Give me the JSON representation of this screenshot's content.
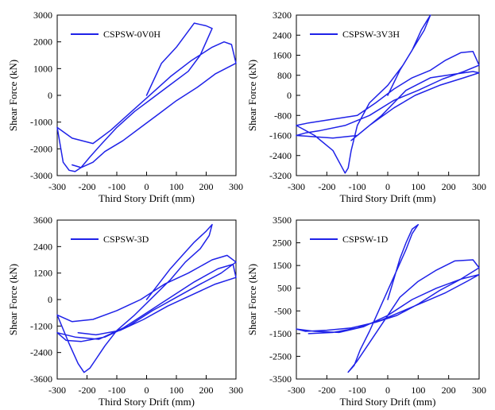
{
  "chart_data": [
    {
      "type": "line",
      "title": "",
      "xlabel": "Third Story Drift (mm)",
      "ylabel": "Shear Force (kN)",
      "xlim": [
        -300,
        300
      ],
      "ylim": [
        -3000,
        3000
      ],
      "xticks": [
        -300,
        -200,
        -100,
        0,
        100,
        200,
        300
      ],
      "yticks": [
        3000,
        2000,
        1000,
        0,
        -1000,
        -2000,
        -3000
      ],
      "xtick_labels": [
        "-300",
        "-200",
        "-100",
        "0",
        "100",
        "200",
        "300"
      ],
      "ytick_labels": [
        "3000",
        "2000",
        "1000",
        "0",
        "-1000",
        "-2000",
        "-3000"
      ],
      "legend": "top-left",
      "grid": false,
      "color": "#1f22e8",
      "series": [
        {
          "name": "CSPSW-0V0H",
          "x": [
            0,
            50,
            100,
            140,
            160,
            180,
            200,
            220,
            180,
            140,
            80,
            20,
            -40,
            -100,
            -150,
            -190,
            -220,
            -240,
            -260,
            -280,
            -300,
            -250,
            -180,
            -120,
            -60,
            0,
            80,
            150,
            220,
            260,
            285,
            300,
            230,
            170,
            100,
            40,
            -20,
            -80,
            -140,
            -180,
            -220,
            -250
          ],
          "y": [
            0,
            1200,
            1800,
            2400,
            2700,
            2650,
            2600,
            2500,
            1500,
            900,
            400,
            -100,
            -600,
            -1200,
            -1800,
            -2300,
            -2700,
            -2850,
            -2800,
            -2500,
            -1200,
            -1600,
            -1800,
            -1300,
            -700,
            -100,
            700,
            1300,
            1800,
            2000,
            1900,
            1200,
            800,
            300,
            -200,
            -700,
            -1200,
            -1700,
            -2100,
            -2500,
            -2700,
            -2600
          ]
        }
      ]
    },
    {
      "type": "line",
      "title": "",
      "xlabel": "Third Story Drift (mm)",
      "ylabel": "Shear Force (kN)",
      "xlim": [
        -300,
        300
      ],
      "ylim": [
        -3200,
        3200
      ],
      "xticks": [
        -300,
        -200,
        -100,
        0,
        100,
        200,
        300
      ],
      "yticks": [
        3200,
        2400,
        1600,
        800,
        0,
        -800,
        -1600,
        -2400,
        -3200
      ],
      "xtick_labels": [
        "-300",
        "-200",
        "-100",
        "0",
        "100",
        "200",
        "300"
      ],
      "ytick_labels": [
        "3200",
        "2400",
        "1600",
        "800",
        "0",
        "-800",
        "-1600",
        "-2400",
        "-3200"
      ],
      "legend": "top-left",
      "grid": false,
      "color": "#1f22e8",
      "series": [
        {
          "name": "CSPSW-3V3H",
          "x": [
            0,
            40,
            80,
            110,
            130,
            140,
            120,
            90,
            50,
            0,
            -60,
            -100,
            -120,
            -130,
            -140,
            -180,
            -240,
            -300,
            -260,
            -180,
            -100,
            -40,
            20,
            80,
            140,
            190,
            240,
            280,
            300,
            250,
            180,
            100,
            20,
            -60,
            -140,
            -220,
            -270,
            -300,
            -240,
            -180,
            -100,
            -20,
            60,
            140,
            220,
            280,
            300,
            250,
            170,
            90,
            20,
            -60,
            -120
          ],
          "y": [
            0,
            1000,
            1800,
            2600,
            3000,
            3200,
            2600,
            2000,
            1200,
            400,
            -300,
            -1200,
            -2200,
            -2900,
            -3100,
            -2200,
            -1600,
            -1200,
            -1100,
            -950,
            -800,
            -300,
            250,
            700,
            1000,
            1400,
            1700,
            1750,
            1200,
            950,
            650,
            200,
            -200,
            -800,
            -1200,
            -1400,
            -1500,
            -1600,
            -1650,
            -1700,
            -1600,
            -800,
            200,
            700,
            850,
            950,
            900,
            700,
            400,
            0,
            -500,
            -1200,
            -1800
          ]
        }
      ]
    },
    {
      "type": "line",
      "title": "",
      "xlabel": "Third Story Drift (mm)",
      "ylabel": "Shear Force (kN)",
      "xlim": [
        -300,
        300
      ],
      "ylim": [
        -3600,
        3600
      ],
      "xticks": [
        -300,
        -200,
        -100,
        0,
        100,
        200,
        300
      ],
      "yticks": [
        3600,
        2400,
        1200,
        0,
        -1200,
        -2400,
        -3600
      ],
      "xtick_labels": [
        "-300",
        "-200",
        "-100",
        "0",
        "100",
        "200",
        "300"
      ],
      "ytick_labels": [
        "3600",
        "2400",
        "1200",
        "0",
        "-1200",
        "-2400",
        "-3600"
      ],
      "legend": "top-left",
      "grid": false,
      "color": "#1f22e8",
      "series": [
        {
          "name": "CSPSW-3D",
          "x": [
            0,
            40,
            80,
            120,
            160,
            200,
            220,
            210,
            180,
            130,
            80,
            20,
            -40,
            -100,
            -140,
            -170,
            -190,
            -210,
            -230,
            -260,
            -300,
            -250,
            -180,
            -100,
            -20,
            60,
            140,
            220,
            270,
            300,
            250,
            180,
            100,
            20,
            -60,
            -140,
            -220,
            -270,
            -300,
            -240,
            -160,
            -80,
            0,
            80,
            160,
            240,
            290,
            300,
            230,
            150,
            70,
            -10,
            -90,
            -170,
            -230
          ],
          "y": [
            0,
            700,
            1400,
            2000,
            2600,
            3100,
            3400,
            2900,
            2300,
            1700,
            900,
            100,
            -700,
            -1400,
            -2100,
            -2700,
            -3100,
            -3300,
            -2900,
            -2000,
            -700,
            -1000,
            -900,
            -500,
            0,
            700,
            1200,
            1800,
            2000,
            1700,
            1200,
            700,
            100,
            -500,
            -1200,
            -1700,
            -1900,
            -1850,
            -1500,
            -1700,
            -1800,
            -1300,
            -600,
            100,
            800,
            1400,
            1600,
            1000,
            700,
            200,
            -300,
            -900,
            -1400,
            -1600,
            -1500
          ]
        }
      ]
    },
    {
      "type": "line",
      "title": "",
      "xlabel": "Third Story Drift (mm)",
      "ylabel": "Shear Force (kN)",
      "xlim": [
        -300,
        300
      ],
      "ylim": [
        -3500,
        3500
      ],
      "xticks": [
        -300,
        -200,
        -100,
        0,
        100,
        200,
        300
      ],
      "yticks": [
        3500,
        2500,
        1500,
        500,
        -500,
        -1500,
        -2500,
        -3500
      ],
      "xtick_labels": [
        "-300",
        "-200",
        "-100",
        "0",
        "100",
        "200",
        "300"
      ],
      "ytick_labels": [
        "3500",
        "2500",
        "1500",
        "500",
        "-500",
        "-1500",
        "-2500",
        "-3500"
      ],
      "legend": "top-left",
      "grid": false,
      "color": "#1f22e8",
      "series": [
        {
          "name": "CSPSW-1D",
          "x": [
            0,
            20,
            40,
            60,
            80,
            100,
            80,
            60,
            30,
            0,
            -30,
            -60,
            -90,
            -110,
            -130,
            -100,
            -60,
            -10,
            40,
            100,
            160,
            220,
            280,
            300,
            240,
            170,
            100,
            30,
            -40,
            -120,
            -200,
            -270,
            -300,
            -240,
            -160,
            -80,
            0,
            80,
            160,
            240,
            300,
            260,
            190,
            120,
            50,
            -20,
            -100,
            -180,
            -260
          ],
          "y": [
            0,
            900,
            1800,
            2500,
            3100,
            3300,
            2900,
            2200,
            1300,
            400,
            -500,
            -1400,
            -2200,
            -2900,
            -3200,
            -2700,
            -1900,
            -900,
            100,
            800,
            1300,
            1700,
            1750,
            1400,
            900,
            400,
            -200,
            -700,
            -1000,
            -1250,
            -1350,
            -1400,
            -1300,
            -1400,
            -1450,
            -1200,
            -700,
            0,
            500,
            900,
            1100,
            800,
            300,
            -100,
            -500,
            -900,
            -1250,
            -1450,
            -1500
          ]
        }
      ]
    }
  ]
}
